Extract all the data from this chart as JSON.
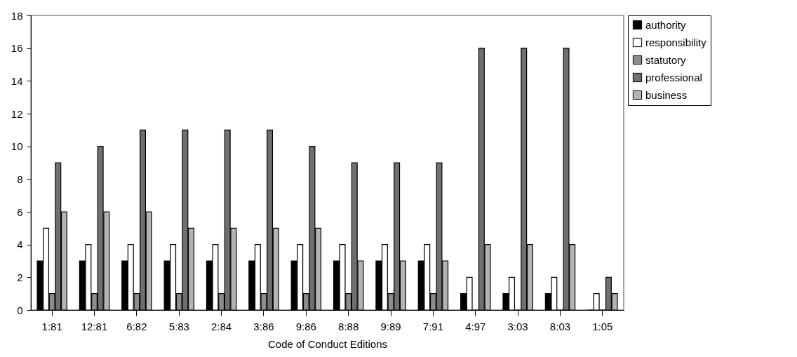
{
  "chart_data": {
    "type": "bar",
    "xlabel": "Code of Conduct Editions",
    "categories": [
      "1:81",
      "12:81",
      "6:82",
      "5:83",
      "2:84",
      "3:86",
      "9:86",
      "8:88",
      "9:89",
      "7:91",
      "4:97",
      "3:03",
      "8:03",
      "1:05"
    ],
    "series": [
      {
        "name": "authority",
        "color": "#000000",
        "values": [
          3,
          3,
          3,
          3,
          3,
          3,
          3,
          3,
          3,
          3,
          1,
          1,
          1,
          0
        ]
      },
      {
        "name": "responsibility",
        "color": "#ffffff",
        "values": [
          5,
          4,
          4,
          4,
          4,
          4,
          4,
          4,
          4,
          4,
          2,
          2,
          2,
          1
        ]
      },
      {
        "name": "statutory",
        "color": "#8c8c8c",
        "values": [
          1,
          1,
          1,
          1,
          1,
          1,
          1,
          1,
          1,
          1,
          0,
          0,
          0,
          0
        ]
      },
      {
        "name": "professional",
        "color": "#707070",
        "values": [
          9,
          10,
          11,
          11,
          11,
          11,
          10,
          9,
          9,
          9,
          16,
          16,
          16,
          2
        ]
      },
      {
        "name": "business",
        "color": "#b4b4b4",
        "values": [
          6,
          6,
          6,
          5,
          5,
          5,
          5,
          3,
          3,
          3,
          4,
          4,
          4,
          1
        ]
      }
    ],
    "ylim": [
      0,
      18
    ],
    "yticks": [
      0,
      2,
      4,
      6,
      8,
      10,
      12,
      14,
      16,
      18
    ],
    "grid": false,
    "legend": "right"
  }
}
